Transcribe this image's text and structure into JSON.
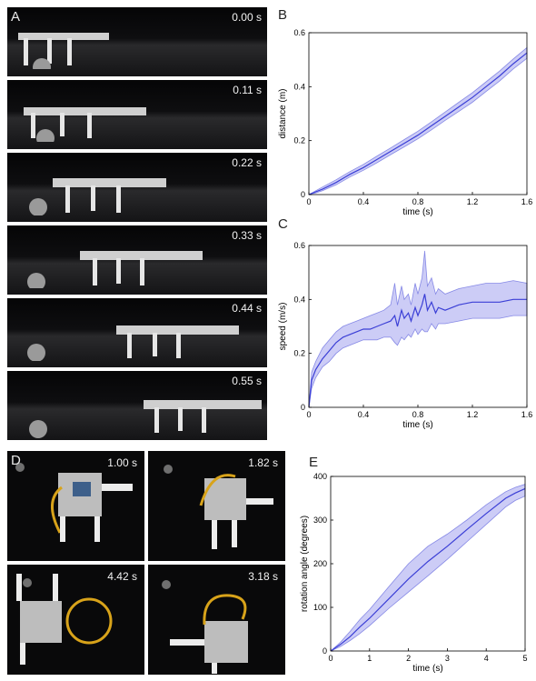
{
  "panels": {
    "a": {
      "letter": "A",
      "timestamps": [
        "0.00 s",
        "0.11 s",
        "0.22 s",
        "0.33 s",
        "0.44 s",
        "0.55 s"
      ]
    },
    "b": {
      "letter": "B"
    },
    "c": {
      "letter": "C"
    },
    "d": {
      "letter": "D",
      "timestamps": [
        "1.00 s",
        "1.82 s",
        "4.42 s",
        "3.18 s"
      ]
    },
    "e": {
      "letter": "E"
    }
  },
  "colors": {
    "line": "#3b3fd6",
    "band": "#aaaaf0"
  },
  "chart_data": [
    {
      "type": "line",
      "xlabel": "time (s)",
      "ylabel": "distance (m)",
      "xlim": [
        0,
        1.6
      ],
      "ylim": [
        0,
        0.6
      ],
      "xticks": [
        "0",
        "0.4",
        "0.8",
        "1.2",
        "1.6"
      ],
      "yticks": [
        "0",
        "0.2",
        "0.4",
        "0.6"
      ],
      "x": [
        0,
        0.05,
        0.1,
        0.2,
        0.3,
        0.4,
        0.5,
        0.6,
        0.7,
        0.8,
        0.9,
        1.0,
        1.1,
        1.2,
        1.3,
        1.4,
        1.5,
        1.6
      ],
      "mean": [
        0,
        0.01,
        0.02,
        0.045,
        0.075,
        0.1,
        0.13,
        0.16,
        0.19,
        0.22,
        0.255,
        0.29,
        0.325,
        0.36,
        0.4,
        0.44,
        0.485,
        0.525
      ],
      "upper": [
        0,
        0.014,
        0.028,
        0.055,
        0.085,
        0.112,
        0.143,
        0.173,
        0.204,
        0.235,
        0.27,
        0.306,
        0.342,
        0.378,
        0.418,
        0.458,
        0.503,
        0.545
      ],
      "lower": [
        0,
        0.006,
        0.014,
        0.036,
        0.065,
        0.09,
        0.118,
        0.148,
        0.177,
        0.207,
        0.24,
        0.275,
        0.308,
        0.342,
        0.382,
        0.421,
        0.466,
        0.505
      ]
    },
    {
      "type": "line",
      "xlabel": "time (s)",
      "ylabel": "speed (m/s)",
      "xlim": [
        0,
        1.6
      ],
      "ylim": [
        0,
        0.6
      ],
      "xticks": [
        "0",
        "0.4",
        "0.8",
        "1.2",
        "1.6"
      ],
      "yticks": [
        "0",
        "0.2",
        "0.4",
        "0.6"
      ],
      "x": [
        0,
        0.02,
        0.05,
        0.1,
        0.15,
        0.2,
        0.25,
        0.3,
        0.35,
        0.4,
        0.45,
        0.5,
        0.55,
        0.6,
        0.63,
        0.65,
        0.68,
        0.7,
        0.73,
        0.75,
        0.78,
        0.8,
        0.83,
        0.85,
        0.87,
        0.9,
        0.93,
        0.95,
        1.0,
        1.1,
        1.2,
        1.3,
        1.4,
        1.5,
        1.6
      ],
      "mean": [
        0,
        0.1,
        0.14,
        0.18,
        0.21,
        0.24,
        0.26,
        0.27,
        0.28,
        0.29,
        0.29,
        0.3,
        0.31,
        0.32,
        0.34,
        0.3,
        0.36,
        0.33,
        0.35,
        0.32,
        0.37,
        0.34,
        0.38,
        0.42,
        0.36,
        0.39,
        0.35,
        0.37,
        0.36,
        0.38,
        0.39,
        0.39,
        0.39,
        0.4,
        0.4
      ],
      "upper": [
        0,
        0.13,
        0.17,
        0.22,
        0.25,
        0.28,
        0.3,
        0.31,
        0.32,
        0.33,
        0.34,
        0.35,
        0.36,
        0.38,
        0.46,
        0.38,
        0.45,
        0.4,
        0.42,
        0.38,
        0.46,
        0.42,
        0.48,
        0.58,
        0.45,
        0.48,
        0.42,
        0.44,
        0.42,
        0.44,
        0.45,
        0.46,
        0.46,
        0.47,
        0.46
      ],
      "lower": [
        0,
        0.07,
        0.11,
        0.15,
        0.17,
        0.2,
        0.22,
        0.23,
        0.24,
        0.25,
        0.25,
        0.25,
        0.26,
        0.26,
        0.24,
        0.23,
        0.26,
        0.25,
        0.27,
        0.26,
        0.29,
        0.27,
        0.29,
        0.28,
        0.28,
        0.31,
        0.29,
        0.31,
        0.31,
        0.32,
        0.33,
        0.33,
        0.33,
        0.34,
        0.34
      ]
    },
    {
      "type": "line",
      "xlabel": "time (s)",
      "ylabel": "rotation angle (degrees)",
      "xlim": [
        0,
        5
      ],
      "ylim": [
        0,
        400
      ],
      "xticks": [
        "0",
        "1",
        "2",
        "3",
        "4",
        "5"
      ],
      "yticks": [
        "0",
        "100",
        "200",
        "300",
        "400"
      ],
      "x": [
        0,
        0.25,
        0.5,
        0.75,
        1.0,
        1.5,
        2.0,
        2.5,
        3.0,
        3.5,
        4.0,
        4.5,
        4.75,
        5.0
      ],
      "mean": [
        0,
        15,
        33,
        55,
        75,
        120,
        165,
        205,
        240,
        278,
        315,
        350,
        362,
        372
      ],
      "upper": [
        0,
        20,
        45,
        72,
        95,
        148,
        200,
        240,
        268,
        300,
        335,
        365,
        375,
        382
      ],
      "lower": [
        0,
        10,
        24,
        40,
        58,
        98,
        135,
        172,
        210,
        250,
        290,
        330,
        345,
        355
      ]
    }
  ]
}
